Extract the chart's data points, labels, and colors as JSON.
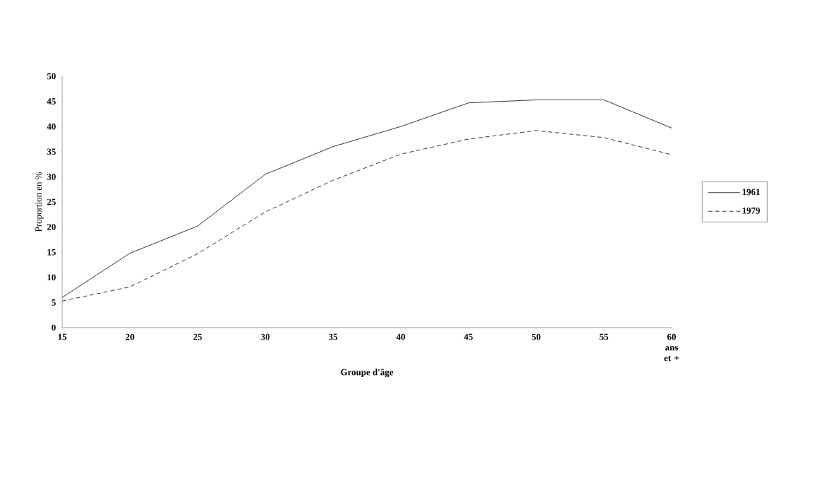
{
  "chart_data": {
    "type": "line",
    "xlabel": "Groupe d'âge",
    "ylabel": "Proportion en %",
    "categories": [
      "15",
      "20",
      "25",
      "30",
      "35",
      "40",
      "45",
      "50",
      "55",
      "60 ans et +"
    ],
    "series": [
      {
        "name": "1961",
        "color": "#000000",
        "line_style": "solid",
        "values": [
          6.0,
          14.8,
          20.2,
          30.5,
          36.0,
          40.0,
          44.7,
          45.3,
          45.3,
          39.7
        ]
      },
      {
        "name": "1979",
        "color": "#000000",
        "line_style": "dashed",
        "values": [
          5.3,
          8.1,
          14.7,
          23.0,
          29.3,
          34.5,
          37.5,
          39.2,
          37.8,
          34.4
        ]
      }
    ],
    "ylim": [
      0,
      50
    ],
    "yticks": [
      0,
      5,
      10,
      15,
      20,
      25,
      30,
      35,
      40,
      45,
      50
    ],
    "grid": false,
    "legend": "right",
    "marker": "none"
  }
}
